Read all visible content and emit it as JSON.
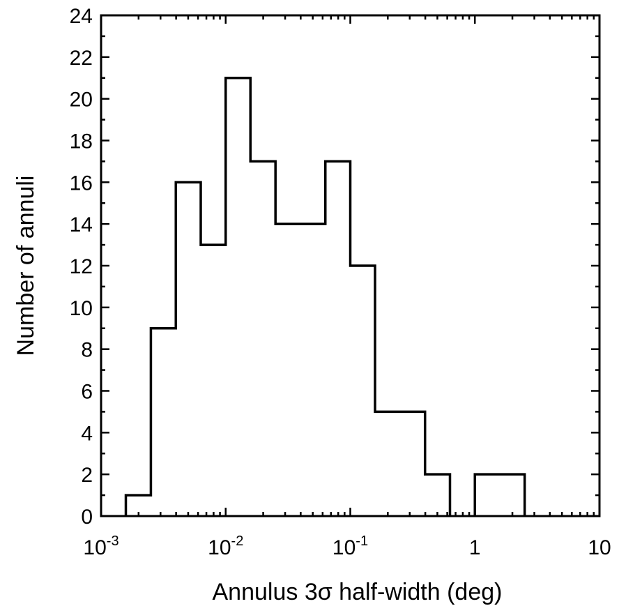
{
  "chart_data": {
    "type": "bar",
    "subtype": "histogram-step",
    "title": "",
    "xlabel": "Annulus 3σ half-width (deg)",
    "ylabel": "Number of annuli",
    "xscale": "log",
    "xlim": [
      0.001,
      10
    ],
    "ylim": [
      0,
      24
    ],
    "grid": false,
    "x_ticks": [
      {
        "value": 0.001,
        "base": "10",
        "exp": "-3"
      },
      {
        "value": 0.01,
        "base": "10",
        "exp": "-2"
      },
      {
        "value": 0.1,
        "base": "10",
        "exp": "-1"
      },
      {
        "value": 1,
        "base": "1",
        "exp": ""
      },
      {
        "value": 10,
        "base": "10",
        "exp": ""
      }
    ],
    "y_ticks": [
      0,
      2,
      4,
      6,
      8,
      10,
      12,
      14,
      16,
      18,
      20,
      22,
      24
    ],
    "bins": [
      {
        "x0": 0.00158,
        "x1": 0.00251,
        "count": 1
      },
      {
        "x0": 0.00251,
        "x1": 0.00398,
        "count": 9
      },
      {
        "x0": 0.00398,
        "x1": 0.00631,
        "count": 16
      },
      {
        "x0": 0.00631,
        "x1": 0.01,
        "count": 13
      },
      {
        "x0": 0.01,
        "x1": 0.0158,
        "count": 21
      },
      {
        "x0": 0.0158,
        "x1": 0.0251,
        "count": 17
      },
      {
        "x0": 0.0251,
        "x1": 0.0398,
        "count": 14
      },
      {
        "x0": 0.0398,
        "x1": 0.0631,
        "count": 14
      },
      {
        "x0": 0.0631,
        "x1": 0.1,
        "count": 17
      },
      {
        "x0": 0.1,
        "x1": 0.158,
        "count": 12
      },
      {
        "x0": 0.158,
        "x1": 0.251,
        "count": 5
      },
      {
        "x0": 0.251,
        "x1": 0.398,
        "count": 5
      },
      {
        "x0": 0.398,
        "x1": 0.631,
        "count": 2
      },
      {
        "x0": 0.631,
        "x1": 1.0,
        "count": 0
      },
      {
        "x0": 1.0,
        "x1": 1.58,
        "count": 2
      },
      {
        "x0": 1.58,
        "x1": 2.51,
        "count": 2
      }
    ]
  }
}
